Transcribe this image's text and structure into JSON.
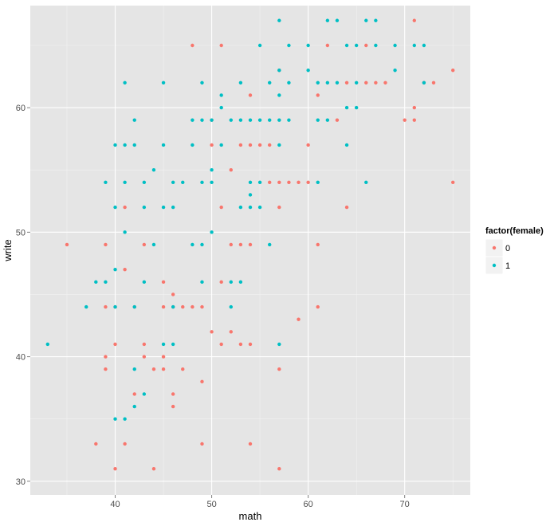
{
  "chart_data": {
    "type": "scatter",
    "xlabel": "math",
    "ylabel": "write",
    "xlim": [
      31.2,
      76.8
    ],
    "ylim": [
      28.9,
      68.2
    ],
    "x_ticks": [
      40,
      50,
      60,
      70
    ],
    "y_ticks": [
      30,
      40,
      50,
      60
    ],
    "x_tick_labels": [
      "40",
      "50",
      "60",
      "70"
    ],
    "y_tick_labels": [
      "30",
      "40",
      "50",
      "60"
    ],
    "grid": true,
    "legend_position": "right",
    "legend_title": "factor(female)",
    "series": [
      {
        "name": "0",
        "color": "#f8766d",
        "points": [
          [
            35,
            49
          ],
          [
            38,
            33
          ],
          [
            39,
            49
          ],
          [
            39,
            44
          ],
          [
            39,
            40
          ],
          [
            39,
            39
          ],
          [
            40,
            31
          ],
          [
            40,
            41
          ],
          [
            40,
            44
          ],
          [
            41,
            52
          ],
          [
            41,
            47
          ],
          [
            41,
            33
          ],
          [
            42,
            37
          ],
          [
            42,
            44
          ],
          [
            43,
            49
          ],
          [
            43,
            41
          ],
          [
            43,
            40
          ],
          [
            44,
            39
          ],
          [
            44,
            31
          ],
          [
            45,
            46
          ],
          [
            45,
            44
          ],
          [
            45,
            40
          ],
          [
            45,
            39
          ],
          [
            46,
            45
          ],
          [
            46,
            44
          ],
          [
            46,
            37
          ],
          [
            46,
            36
          ],
          [
            47,
            44
          ],
          [
            47,
            39
          ],
          [
            48,
            65
          ],
          [
            48,
            44
          ],
          [
            49,
            44
          ],
          [
            49,
            38
          ],
          [
            49,
            33
          ],
          [
            50,
            59
          ],
          [
            50,
            57
          ],
          [
            50,
            42
          ],
          [
            51,
            65
          ],
          [
            51,
            52
          ],
          [
            51,
            46
          ],
          [
            51,
            41
          ],
          [
            52,
            55
          ],
          [
            52,
            49
          ],
          [
            52,
            42
          ],
          [
            53,
            57
          ],
          [
            53,
            49
          ],
          [
            53,
            41
          ],
          [
            54,
            61
          ],
          [
            54,
            57
          ],
          [
            54,
            49
          ],
          [
            54,
            41
          ],
          [
            54,
            33
          ],
          [
            55,
            57
          ],
          [
            56,
            57
          ],
          [
            56,
            54
          ],
          [
            57,
            63
          ],
          [
            57,
            54
          ],
          [
            57,
            52
          ],
          [
            57,
            39
          ],
          [
            57,
            31
          ],
          [
            58,
            54
          ],
          [
            59,
            54
          ],
          [
            59,
            43
          ],
          [
            60,
            57
          ],
          [
            60,
            54
          ],
          [
            61,
            61
          ],
          [
            61,
            49
          ],
          [
            61,
            44
          ],
          [
            62,
            65
          ],
          [
            63,
            59
          ],
          [
            64,
            62
          ],
          [
            64,
            52
          ],
          [
            66,
            65
          ],
          [
            66,
            62
          ],
          [
            67,
            62
          ],
          [
            68,
            62
          ],
          [
            70,
            59
          ],
          [
            71,
            67
          ],
          [
            71,
            60
          ],
          [
            71,
            59
          ],
          [
            72,
            62
          ],
          [
            73,
            62
          ],
          [
            75,
            63
          ],
          [
            75,
            54
          ]
        ]
      },
      {
        "name": "1",
        "color": "#00bfc4",
        "points": [
          [
            33,
            41
          ],
          [
            37,
            44
          ],
          [
            38,
            46
          ],
          [
            39,
            54
          ],
          [
            39,
            46
          ],
          [
            40,
            57
          ],
          [
            40,
            52
          ],
          [
            40,
            47
          ],
          [
            40,
            44
          ],
          [
            40,
            35
          ],
          [
            41,
            62
          ],
          [
            41,
            57
          ],
          [
            41,
            54
          ],
          [
            41,
            50
          ],
          [
            41,
            35
          ],
          [
            42,
            59
          ],
          [
            42,
            57
          ],
          [
            42,
            44
          ],
          [
            42,
            39
          ],
          [
            42,
            36
          ],
          [
            43,
            54
          ],
          [
            43,
            52
          ],
          [
            43,
            46
          ],
          [
            43,
            37
          ],
          [
            44,
            55
          ],
          [
            44,
            49
          ],
          [
            45,
            62
          ],
          [
            45,
            57
          ],
          [
            45,
            52
          ],
          [
            45,
            41
          ],
          [
            46,
            54
          ],
          [
            46,
            52
          ],
          [
            46,
            44
          ],
          [
            46,
            41
          ],
          [
            47,
            54
          ],
          [
            48,
            59
          ],
          [
            48,
            57
          ],
          [
            48,
            49
          ],
          [
            49,
            62
          ],
          [
            49,
            59
          ],
          [
            49,
            54
          ],
          [
            49,
            49
          ],
          [
            49,
            46
          ],
          [
            50,
            55
          ],
          [
            50,
            54
          ],
          [
            50,
            50
          ],
          [
            50,
            59
          ],
          [
            51,
            61
          ],
          [
            51,
            60
          ],
          [
            51,
            57
          ],
          [
            52,
            59
          ],
          [
            52,
            46
          ],
          [
            52,
            44
          ],
          [
            53,
            62
          ],
          [
            53,
            59
          ],
          [
            53,
            52
          ],
          [
            53,
            46
          ],
          [
            54,
            59
          ],
          [
            54,
            54
          ],
          [
            54,
            53
          ],
          [
            54,
            52
          ],
          [
            55,
            65
          ],
          [
            55,
            59
          ],
          [
            55,
            54
          ],
          [
            55,
            52
          ],
          [
            56,
            62
          ],
          [
            56,
            59
          ],
          [
            56,
            49
          ],
          [
            57,
            67
          ],
          [
            57,
            63
          ],
          [
            57,
            61
          ],
          [
            57,
            59
          ],
          [
            57,
            57
          ],
          [
            57,
            41
          ],
          [
            58,
            65
          ],
          [
            58,
            62
          ],
          [
            58,
            59
          ],
          [
            60,
            65
          ],
          [
            60,
            63
          ],
          [
            61,
            62
          ],
          [
            61,
            59
          ],
          [
            61,
            54
          ],
          [
            62,
            67
          ],
          [
            62,
            62
          ],
          [
            62,
            59
          ],
          [
            63,
            67
          ],
          [
            63,
            62
          ],
          [
            64,
            65
          ],
          [
            64,
            60
          ],
          [
            64,
            57
          ],
          [
            65,
            65
          ],
          [
            65,
            62
          ],
          [
            65,
            60
          ],
          [
            66,
            67
          ],
          [
            66,
            54
          ],
          [
            67,
            67
          ],
          [
            67,
            65
          ],
          [
            69,
            65
          ],
          [
            69,
            63
          ],
          [
            71,
            65
          ],
          [
            72,
            65
          ],
          [
            72,
            62
          ]
        ]
      }
    ]
  }
}
